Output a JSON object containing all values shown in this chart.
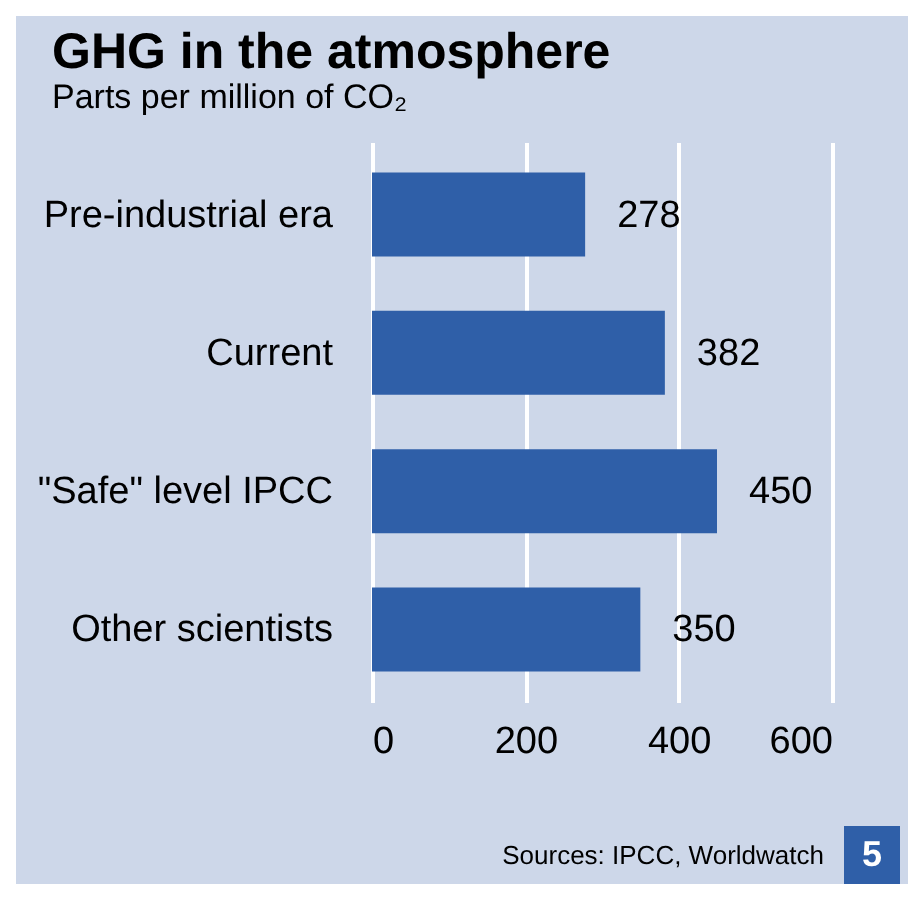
{
  "chart_data": {
    "type": "bar",
    "orientation": "horizontal",
    "title": "GHG in the atmosphere",
    "subtitle": "Parts per million  of CO₂",
    "categories": [
      "Pre-industrial era",
      "Current",
      "\"Safe\" level IPCC",
      "Other scientists"
    ],
    "values": [
      278,
      382,
      450,
      350
    ],
    "color": "#2f5fa8",
    "data_labels": true,
    "xlim": [
      0,
      600
    ],
    "xticks": [
      0,
      200,
      400,
      600
    ],
    "grid": "x",
    "annotations": [
      "Sources: IPCC, Worldwatch",
      "5"
    ]
  }
}
